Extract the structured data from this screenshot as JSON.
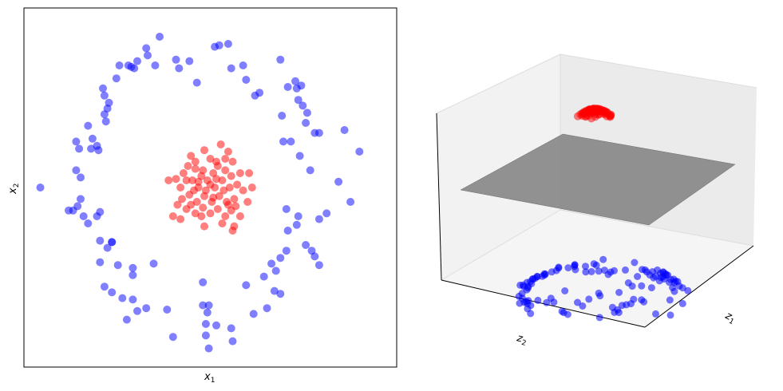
{
  "chart_data": [
    {
      "type": "scatter",
      "xlabel": "x",
      "xlabel_sub": "1",
      "ylabel": "x",
      "ylabel_sub": "2",
      "xlim": [
        -1.25,
        1.25
      ],
      "ylim": [
        -1.25,
        1.25
      ],
      "ticks": "none",
      "colors": {
        "outer": "#0000ff",
        "inner": "#ff0000"
      },
      "series": [
        {
          "points": [
            [
              -1.14,
              0.0
            ],
            [
              -0.95,
              -0.16
            ],
            [
              -0.92,
              -0.16
            ],
            [
              -0.87,
              -0.08
            ],
            [
              -0.85,
              -0.2
            ],
            [
              -0.82,
              -0.25
            ],
            [
              -0.76,
              -0.2
            ],
            [
              -0.74,
              -0.17
            ],
            [
              -0.87,
              0.07
            ],
            [
              -0.9,
              0.12
            ],
            [
              -0.89,
              -0.13
            ],
            [
              -0.9,
              0.32
            ],
            [
              -0.88,
              0.27
            ],
            [
              -0.8,
              0.27
            ],
            [
              -0.79,
              0.34
            ],
            [
              -0.76,
              0.29
            ],
            [
              -0.75,
              0.26
            ],
            [
              -0.82,
              0.43
            ],
            [
              -0.69,
              0.55
            ],
            [
              -0.71,
              0.51
            ],
            [
              -0.7,
              0.46
            ],
            [
              -0.68,
              0.59
            ],
            [
              -0.71,
              0.64
            ],
            [
              -0.72,
              0.69
            ],
            [
              -0.63,
              0.76
            ],
            [
              -0.61,
              0.85
            ],
            [
              -0.53,
              0.84
            ],
            [
              -0.51,
              0.83
            ],
            [
              -0.49,
              0.88
            ],
            [
              -0.42,
              0.92
            ],
            [
              -0.34,
              1.05
            ],
            [
              -0.43,
              0.97
            ],
            [
              -0.55,
              0.85
            ],
            [
              -0.37,
              0.85
            ],
            [
              -0.23,
              0.89
            ],
            [
              -0.21,
              0.83
            ],
            [
              -0.14,
              0.88
            ],
            [
              -0.09,
              0.73
            ],
            [
              0.03,
              0.98
            ],
            [
              0.06,
              0.99
            ],
            [
              0.12,
              1.0
            ],
            [
              0.14,
              0.83
            ],
            [
              0.22,
              0.85
            ],
            [
              0.24,
              0.75
            ],
            [
              0.3,
              0.64
            ],
            [
              0.33,
              0.66
            ],
            [
              0.47,
              0.89
            ],
            [
              0.52,
              0.7
            ],
            [
              0.58,
              0.69
            ],
            [
              0.57,
              0.74
            ],
            [
              0.61,
              0.71
            ],
            [
              0.59,
              0.61
            ],
            [
              0.62,
              0.57
            ],
            [
              0.65,
              0.52
            ],
            [
              0.64,
              0.45
            ],
            [
              0.7,
              0.38
            ],
            [
              0.73,
              0.38
            ],
            [
              0.9,
              0.4
            ],
            [
              1.0,
              0.25
            ],
            [
              0.86,
              0.04
            ],
            [
              0.94,
              -0.1
            ],
            [
              0.78,
              -0.18
            ],
            [
              0.73,
              -0.22
            ],
            [
              0.67,
              0.12
            ],
            [
              0.6,
              0.22
            ],
            [
              0.48,
              0.5
            ],
            [
              0.49,
              0.32
            ],
            [
              0.54,
              0.32
            ],
            [
              0.51,
              -0.15
            ],
            [
              0.59,
              -0.2
            ],
            [
              0.58,
              -0.26
            ],
            [
              0.52,
              -0.3
            ],
            [
              0.64,
              -0.4
            ],
            [
              0.68,
              -0.44
            ],
            [
              0.7,
              -0.48
            ],
            [
              0.73,
              -0.54
            ],
            [
              0.51,
              -0.44
            ],
            [
              0.47,
              -0.49
            ],
            [
              0.41,
              -0.53
            ],
            [
              0.44,
              -0.58
            ],
            [
              0.36,
              -0.62
            ],
            [
              0.43,
              -0.72
            ],
            [
              0.47,
              -0.74
            ],
            [
              0.38,
              -0.84
            ],
            [
              0.29,
              -0.88
            ],
            [
              0.14,
              -0.98
            ],
            [
              0.15,
              -1.07
            ],
            [
              0.04,
              -0.96
            ],
            [
              -0.03,
              -0.95
            ],
            [
              -0.03,
              -1.03
            ],
            [
              -0.01,
              -1.12
            ],
            [
              -0.25,
              -1.04
            ],
            [
              -0.29,
              -0.85
            ],
            [
              -0.43,
              -0.84
            ],
            [
              -0.49,
              -0.86
            ],
            [
              -0.56,
              -0.92
            ],
            [
              -0.52,
              -0.78
            ],
            [
              -0.59,
              -0.77
            ],
            [
              -0.66,
              -0.73
            ],
            [
              -0.71,
              -0.69
            ],
            [
              -0.74,
              -0.52
            ],
            [
              -0.62,
              -0.54
            ],
            [
              -0.52,
              -0.61
            ],
            [
              -0.52,
              -0.56
            ],
            [
              -0.38,
              -0.53
            ],
            [
              -0.66,
              -0.38
            ],
            [
              -0.69,
              -0.42
            ],
            [
              -0.74,
              -0.37
            ],
            [
              -0.66,
              -0.38
            ],
            [
              -0.05,
              -0.66
            ],
            [
              -0.01,
              -0.82
            ],
            [
              -0.02,
              -0.87
            ],
            [
              -0.05,
              -0.82
            ],
            [
              0.24,
              -0.68
            ]
          ]
        },
        {
          "points": [
            [
              -0.18,
              0.1
            ],
            [
              -0.15,
              0.15
            ],
            [
              -0.1,
              0.18
            ],
            [
              -0.05,
              0.12
            ],
            [
              0.0,
              0.2
            ],
            [
              0.05,
              0.15
            ],
            [
              0.1,
              0.12
            ],
            [
              0.15,
              0.18
            ],
            [
              0.2,
              0.1
            ],
            [
              -0.2,
              0.0
            ],
            [
              -0.12,
              0.05
            ],
            [
              -0.08,
              0.0
            ],
            [
              -0.02,
              0.05
            ],
            [
              0.03,
              0.0
            ],
            [
              0.08,
              0.05
            ],
            [
              0.13,
              0.0
            ],
            [
              0.18,
              0.02
            ],
            [
              0.22,
              -0.02
            ],
            [
              -0.19,
              -0.08
            ],
            [
              -0.14,
              -0.05
            ],
            [
              -0.09,
              -0.1
            ],
            [
              -0.04,
              -0.06
            ],
            [
              0.01,
              -0.1
            ],
            [
              0.06,
              -0.06
            ],
            [
              0.11,
              -0.1
            ],
            [
              0.16,
              -0.08
            ],
            [
              -0.16,
              -0.15
            ],
            [
              -0.1,
              -0.18
            ],
            [
              -0.05,
              -0.14
            ],
            [
              0.0,
              -0.18
            ],
            [
              0.05,
              -0.15
            ],
            [
              0.1,
              -0.2
            ],
            [
              0.14,
              -0.16
            ],
            [
              -0.22,
              -0.12
            ],
            [
              -0.23,
              0.06
            ],
            [
              0.25,
              -0.1
            ],
            [
              0.26,
              0.1
            ],
            [
              0.12,
              0.25
            ],
            [
              -0.04,
              0.26
            ],
            [
              -0.13,
              0.22
            ],
            [
              0.07,
              0.3
            ],
            [
              -0.08,
              0.04
            ],
            [
              0.02,
              0.1
            ],
            [
              0.09,
              -0.02
            ],
            [
              -0.03,
              -0.02
            ],
            [
              -0.11,
              -0.02
            ],
            [
              0.04,
              0.06
            ],
            [
              -0.06,
              0.08
            ],
            [
              0.14,
              0.08
            ],
            [
              -0.16,
              0.05
            ],
            [
              0.17,
              -0.13
            ],
            [
              0.08,
              -0.25
            ],
            [
              0.15,
              -0.3
            ],
            [
              0.16,
              -0.27
            ],
            [
              -0.04,
              -0.27
            ],
            [
              -0.2,
              -0.22
            ],
            [
              -0.06,
              -0.2
            ],
            [
              0.2,
              -0.2
            ],
            [
              0.28,
              0.0
            ],
            [
              0.1,
              0.2
            ],
            [
              -0.1,
              0.13
            ],
            [
              0.04,
              0.18
            ],
            [
              -0.25,
              -0.2
            ],
            [
              -0.28,
              0.05
            ],
            [
              0.02,
              -0.07
            ],
            [
              -0.13,
              -0.12
            ],
            [
              0.12,
              -0.12
            ],
            [
              0.0,
              0.02
            ]
          ]
        }
      ]
    },
    {
      "type": "scatter3d",
      "xlabel": "z",
      "xlabel_sub": "1",
      "ylabel": "z",
      "ylabel_sub": "2",
      "ticks": "none",
      "plane_color": "#808080",
      "colors": {
        "outer": "#0000ff",
        "inner": "#ff0000"
      }
    }
  ]
}
